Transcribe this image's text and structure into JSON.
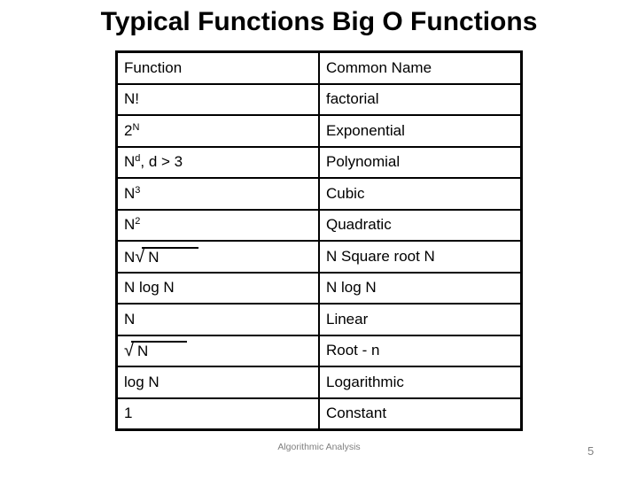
{
  "slide": {
    "title": "Typical Functions Big O Functions",
    "footer": "Algorithmic Analysis",
    "page_number": "5"
  },
  "table": {
    "headers": [
      "Function",
      "Common Name"
    ],
    "rows": [
      {
        "function": [
          {
            "type": "text",
            "value": "N!"
          }
        ],
        "common_name": "factorial"
      },
      {
        "function": [
          {
            "type": "text",
            "value": "2"
          },
          {
            "type": "sup",
            "value": "N"
          }
        ],
        "common_name": "Exponential"
      },
      {
        "function": [
          {
            "type": "text",
            "value": "N"
          },
          {
            "type": "sup",
            "value": "d"
          },
          {
            "type": "text",
            "value": ", d > 3"
          }
        ],
        "common_name": "Polynomial"
      },
      {
        "function": [
          {
            "type": "text",
            "value": "N"
          },
          {
            "type": "sup",
            "value": "3"
          }
        ],
        "common_name": "Cubic"
      },
      {
        "function": [
          {
            "type": "text",
            "value": "N"
          },
          {
            "type": "sup",
            "value": "2"
          }
        ],
        "common_name": "Quadratic"
      },
      {
        "function": [
          {
            "type": "text",
            "value": "N"
          },
          {
            "type": "radical",
            "value": "N"
          }
        ],
        "common_name": "N Square root N"
      },
      {
        "function": [
          {
            "type": "text",
            "value": "N log N"
          }
        ],
        "common_name": "N log N"
      },
      {
        "function": [
          {
            "type": "text",
            "value": "N"
          }
        ],
        "common_name": "Linear"
      },
      {
        "function": [
          {
            "type": "radical",
            "value": "N"
          }
        ],
        "common_name": "Root - n"
      },
      {
        "function": [
          {
            "type": "text",
            "value": "log N"
          }
        ],
        "common_name": "Logarithmic"
      },
      {
        "function": [
          {
            "type": "text",
            "value": "1"
          }
        ],
        "common_name": "Constant"
      }
    ]
  },
  "colors": {
    "text": "#000000",
    "muted": "#7f7f7f",
    "border": "#000000",
    "background": "#ffffff"
  }
}
